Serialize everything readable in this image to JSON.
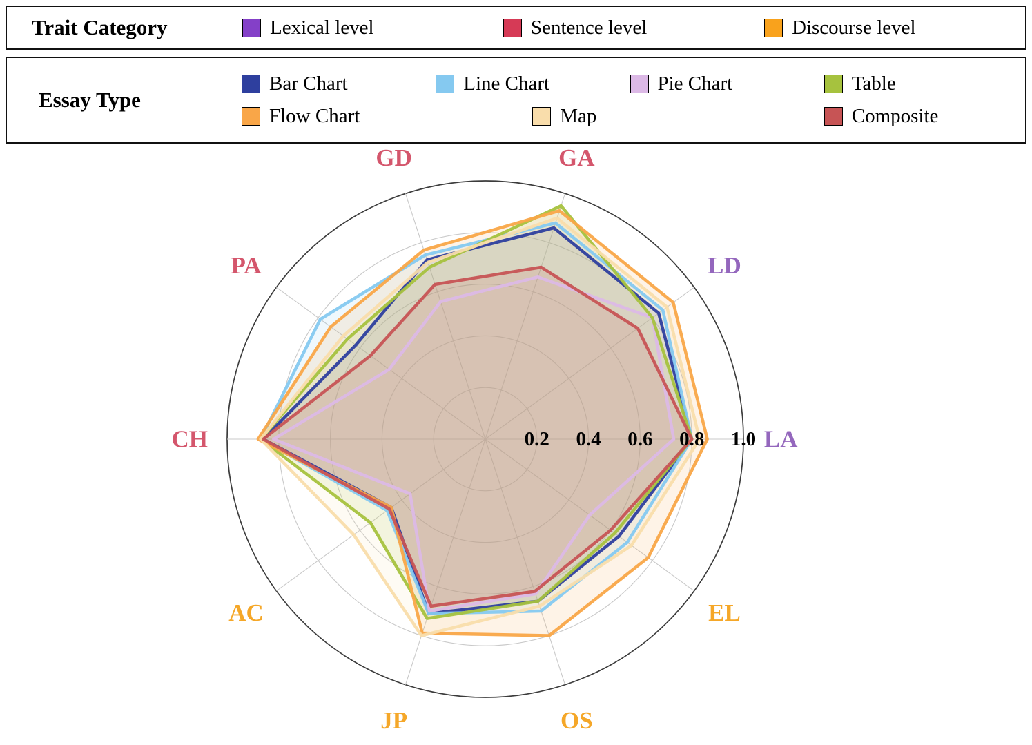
{
  "legend_trait": {
    "title": "Trait Category",
    "items": [
      {
        "label": "Lexical level",
        "color": "#8440c8"
      },
      {
        "label": "Sentence level",
        "color": "#d63a56"
      },
      {
        "label": "Discourse level",
        "color": "#f9a21c"
      }
    ]
  },
  "legend_essay": {
    "title": "Essay Type",
    "items": [
      {
        "label": "Bar Chart",
        "color": "#2e3f9e"
      },
      {
        "label": "Line Chart",
        "color": "#85c9f0"
      },
      {
        "label": "Pie Chart",
        "color": "#dcb9e6"
      },
      {
        "label": "Table",
        "color": "#a6c23e"
      },
      {
        "label": "Flow Chart",
        "color": "#f9a648"
      },
      {
        "label": "Map",
        "color": "#f9ddab"
      },
      {
        "label": "Composite",
        "color": "#c75455"
      }
    ]
  },
  "chart_data": {
    "type": "radar",
    "title": "",
    "range": [
      0,
      1
    ],
    "radial_ticks": [
      0.2,
      0.4,
      0.6,
      0.8,
      1.0
    ],
    "grid": true,
    "axes": [
      {
        "id": "LA",
        "category": "lexical"
      },
      {
        "id": "LD",
        "category": "lexical"
      },
      {
        "id": "GA",
        "category": "sentence"
      },
      {
        "id": "GD",
        "category": "sentence"
      },
      {
        "id": "PA",
        "category": "sentence"
      },
      {
        "id": "CH",
        "category": "sentence"
      },
      {
        "id": "AC",
        "category": "discourse"
      },
      {
        "id": "JP",
        "category": "discourse"
      },
      {
        "id": "OS",
        "category": "discourse"
      },
      {
        "id": "EL",
        "category": "discourse"
      }
    ],
    "category_colors": {
      "lexical": "#9467bd",
      "sentence": "#d4566c",
      "discourse": "#f5a728"
    },
    "fill_opacity": 0.13,
    "series": [
      {
        "name": "Bar Chart",
        "color": "#2e3f9e",
        "values": [
          0.8,
          0.83,
          0.86,
          0.73,
          0.62,
          0.86,
          0.45,
          0.71,
          0.66,
          0.64
        ]
      },
      {
        "name": "Line Chart",
        "color": "#85c9f0",
        "values": [
          0.8,
          0.85,
          0.88,
          0.75,
          0.79,
          0.87,
          0.47,
          0.71,
          0.7,
          0.68
        ]
      },
      {
        "name": "Pie Chart",
        "color": "#dcb9e6",
        "values": [
          0.73,
          0.8,
          0.66,
          0.56,
          0.46,
          0.82,
          0.36,
          0.7,
          0.63,
          0.5
        ]
      },
      {
        "name": "Table",
        "color": "#a6c23e",
        "values": [
          0.8,
          0.8,
          0.95,
          0.7,
          0.66,
          0.87,
          0.55,
          0.73,
          0.66,
          0.62
        ]
      },
      {
        "name": "Flow Chart",
        "color": "#f9a648",
        "values": [
          0.86,
          0.9,
          0.93,
          0.77,
          0.74,
          0.88,
          0.45,
          0.79,
          0.8,
          0.78
        ]
      },
      {
        "name": "Map",
        "color": "#f9ddab",
        "values": [
          0.83,
          0.87,
          0.9,
          0.72,
          0.68,
          0.87,
          0.63,
          0.8,
          0.68,
          0.7
        ]
      },
      {
        "name": "Composite",
        "color": "#c75455",
        "values": [
          0.8,
          0.73,
          0.7,
          0.63,
          0.55,
          0.86,
          0.46,
          0.68,
          0.62,
          0.6
        ]
      }
    ]
  }
}
